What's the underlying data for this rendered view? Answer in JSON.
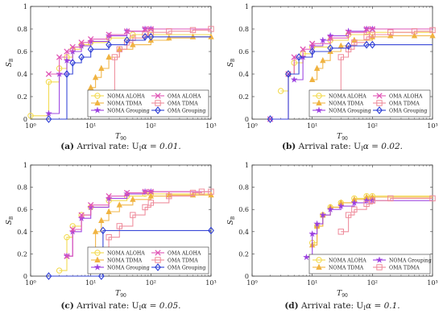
{
  "chart_data": [
    {
      "type": "line",
      "panel": "a",
      "caption_tag": "(a)",
      "caption_text": " Arrival rate: U",
      "caption_sub": "I",
      "caption_rest": "α = 0.01.",
      "xlabel": "T",
      "xlabel_sub": "90",
      "ylabel": "S",
      "ylabel_sub": "B",
      "x_scale": "log",
      "xlim": [
        1,
        1000
      ],
      "ylim": [
        0,
        1
      ],
      "x_ticks": [
        1,
        10,
        100,
        1000
      ],
      "x_tick_labels": [
        "10⁰",
        "10¹",
        "10²",
        "10³"
      ],
      "y_ticks": [
        0,
        0.2,
        0.4,
        0.6,
        0.8,
        1
      ],
      "y_tick_labels": [
        "0",
        "0.2",
        "0.4",
        "0.6",
        "0.8",
        "1"
      ],
      "legend_position": "bottom-right",
      "series": [
        {
          "name": "NOMA ALOHA",
          "color": "#f2d94a",
          "marker": "circle",
          "x": [
            1,
            2,
            3,
            4,
            5,
            7,
            10,
            20,
            50,
            100
          ],
          "y": [
            0.03,
            0.33,
            0.45,
            0.55,
            0.62,
            0.66,
            0.68,
            0.72,
            0.75,
            0.75
          ]
        },
        {
          "name": "NOMA TDMA",
          "color": "#f0b341",
          "marker": "triangle",
          "x": [
            10,
            12,
            15,
            20,
            30,
            50,
            100,
            200,
            500,
            1000
          ],
          "y": [
            0.28,
            0.37,
            0.45,
            0.55,
            0.62,
            0.66,
            0.7,
            0.72,
            0.73,
            0.73
          ]
        },
        {
          "name": "NOMA Grouping",
          "color": "#9a3ee0",
          "marker": "star",
          "x": [
            2,
            3,
            4,
            5,
            7,
            10,
            20,
            40,
            80,
            100
          ],
          "y": [
            0.05,
            0.4,
            0.52,
            0.6,
            0.65,
            0.69,
            0.74,
            0.78,
            0.8,
            0.8
          ]
        },
        {
          "name": "OMA ALOHA",
          "color": "#e055b5",
          "marker": "x",
          "x": [
            2,
            3,
            4,
            5,
            7,
            10,
            20,
            40,
            80,
            100
          ],
          "y": [
            0.4,
            0.55,
            0.6,
            0.64,
            0.68,
            0.71,
            0.75,
            0.78,
            0.8,
            0.8
          ]
        },
        {
          "name": "OMA TDMA",
          "color": "#ee8a9a",
          "marker": "square",
          "x": [
            20,
            25,
            30,
            40,
            50,
            80,
            100,
            200,
            500,
            1000
          ],
          "y": [
            0.18,
            0.55,
            0.62,
            0.68,
            0.72,
            0.75,
            0.77,
            0.78,
            0.79,
            0.8
          ]
        },
        {
          "name": "OMA Grouping",
          "color": "#2f3fd6",
          "marker": "diamond",
          "x": [
            2,
            4,
            5,
            7,
            10,
            20,
            40,
            80,
            100
          ],
          "y": [
            0.0,
            0.4,
            0.5,
            0.55,
            0.62,
            0.66,
            0.7,
            0.73,
            0.73
          ]
        }
      ]
    },
    {
      "type": "line",
      "panel": "b",
      "caption_tag": "(b)",
      "caption_text": " Arrival rate: U",
      "caption_sub": "I",
      "caption_rest": "α = 0.02.",
      "xlabel": "T",
      "xlabel_sub": "90",
      "ylabel": "S",
      "ylabel_sub": "B",
      "x_scale": "log",
      "xlim": [
        1,
        1000
      ],
      "ylim": [
        0,
        1
      ],
      "x_ticks": [
        1,
        10,
        100,
        1000
      ],
      "x_tick_labels": [
        "10⁰",
        "10¹",
        "10²",
        "10³"
      ],
      "y_ticks": [
        0,
        0.2,
        0.4,
        0.6,
        0.8,
        1
      ],
      "y_tick_labels": [
        "0",
        "0.2",
        "0.4",
        "0.6",
        "0.8",
        "1"
      ],
      "legend_position": "bottom-right",
      "series": [
        {
          "name": "NOMA ALOHA",
          "color": "#f2d94a",
          "marker": "circle",
          "x": [
            3,
            4,
            5,
            7,
            10,
            20,
            40,
            80,
            100
          ],
          "y": [
            0.25,
            0.4,
            0.5,
            0.58,
            0.64,
            0.7,
            0.75,
            0.77,
            0.77
          ]
        },
        {
          "name": "NOMA TDMA",
          "color": "#f0b341",
          "marker": "triangle",
          "x": [
            10,
            12,
            15,
            20,
            30,
            50,
            100,
            200,
            500,
            1000
          ],
          "y": [
            0.35,
            0.45,
            0.52,
            0.6,
            0.65,
            0.7,
            0.73,
            0.74,
            0.74,
            0.74
          ]
        },
        {
          "name": "NOMA Grouping",
          "color": "#9a3ee0",
          "marker": "star",
          "x": [
            5,
            7,
            10,
            15,
            20,
            40,
            80,
            100
          ],
          "y": [
            0.35,
            0.55,
            0.65,
            0.7,
            0.74,
            0.78,
            0.8,
            0.8
          ]
        },
        {
          "name": "OMA ALOHA",
          "color": "#e055b5",
          "marker": "x",
          "x": [
            2,
            4,
            5,
            7,
            10,
            20,
            40,
            80,
            100
          ],
          "y": [
            0.0,
            0.4,
            0.55,
            0.62,
            0.67,
            0.72,
            0.77,
            0.8,
            0.8
          ]
        },
        {
          "name": "OMA TDMA",
          "color": "#ee8a9a",
          "marker": "square",
          "x": [
            20,
            30,
            40,
            50,
            80,
            100,
            200,
            500,
            1000
          ],
          "y": [
            0.12,
            0.55,
            0.62,
            0.68,
            0.73,
            0.75,
            0.77,
            0.78,
            0.79
          ]
        },
        {
          "name": "OMA Grouping",
          "color": "#2f3fd6",
          "marker": "diamond",
          "x": [
            2,
            4,
            6,
            10,
            20,
            40,
            80,
            100
          ],
          "y": [
            0.0,
            0.4,
            0.55,
            0.6,
            0.63,
            0.65,
            0.66,
            0.66
          ]
        }
      ]
    },
    {
      "type": "line",
      "panel": "c",
      "caption_tag": "(c)",
      "caption_text": " Arrival rate: U",
      "caption_sub": "I",
      "caption_rest": "α = 0.05.",
      "xlabel": "T",
      "xlabel_sub": "90",
      "ylabel": "S",
      "ylabel_sub": "B",
      "x_scale": "log",
      "xlim": [
        1,
        1000
      ],
      "ylim": [
        0,
        1
      ],
      "x_ticks": [
        1,
        10,
        100,
        1000
      ],
      "x_tick_labels": [
        "10⁰",
        "10¹",
        "10²",
        "10³"
      ],
      "y_ticks": [
        0,
        0.2,
        0.4,
        0.6,
        0.8,
        1
      ],
      "y_tick_labels": [
        "0",
        "0.2",
        "0.4",
        "0.6",
        "0.8",
        "1"
      ],
      "legend_position": "bottom-right",
      "series": [
        {
          "name": "NOMA ALOHA",
          "color": "#f2d94a",
          "marker": "circle",
          "x": [
            3,
            4,
            5,
            7,
            10,
            20,
            40,
            80,
            100
          ],
          "y": [
            0.05,
            0.35,
            0.45,
            0.55,
            0.62,
            0.68,
            0.72,
            0.74,
            0.74
          ]
        },
        {
          "name": "NOMA TDMA",
          "color": "#f0b341",
          "marker": "triangle",
          "x": [
            10,
            12,
            15,
            20,
            30,
            50,
            100,
            200,
            500,
            1000
          ],
          "y": [
            0.22,
            0.4,
            0.5,
            0.58,
            0.64,
            0.69,
            0.72,
            0.73,
            0.73,
            0.73
          ]
        },
        {
          "name": "NOMA Grouping",
          "color": "#9a3ee0",
          "marker": "star",
          "x": [
            4,
            5,
            7,
            10,
            20,
            40,
            80,
            100
          ],
          "y": [
            0.18,
            0.4,
            0.52,
            0.62,
            0.7,
            0.74,
            0.76,
            0.76
          ]
        },
        {
          "name": "OMA ALOHA",
          "color": "#e055b5",
          "marker": "x",
          "x": [
            4,
            5,
            7,
            10,
            20,
            40,
            80,
            100
          ],
          "y": [
            0.18,
            0.42,
            0.55,
            0.64,
            0.72,
            0.75,
            0.76,
            0.76
          ]
        },
        {
          "name": "OMA TDMA",
          "color": "#ee8a9a",
          "marker": "square",
          "x": [
            15,
            20,
            30,
            50,
            80,
            100,
            200,
            500,
            700,
            1000
          ],
          "y": [
            0.15,
            0.35,
            0.45,
            0.55,
            0.62,
            0.66,
            0.72,
            0.75,
            0.76,
            0.76
          ]
        },
        {
          "name": "OMA Grouping",
          "color": "#2f3fd6",
          "marker": "diamond",
          "x": [
            2,
            15,
            16,
            1000
          ],
          "y": [
            0.0,
            0.0,
            0.41,
            0.41
          ]
        }
      ]
    },
    {
      "type": "line",
      "panel": "d",
      "caption_tag": "(d)",
      "caption_text": " Arrival rate: U",
      "caption_sub": "I",
      "caption_rest": "α = 0.1.",
      "xlabel": "T",
      "xlabel_sub": "90",
      "ylabel": "S",
      "ylabel_sub": "B",
      "x_scale": "log",
      "xlim": [
        1,
        1000
      ],
      "ylim": [
        0,
        1
      ],
      "x_ticks": [
        1,
        10,
        100,
        1000
      ],
      "x_tick_labels": [
        "10⁰",
        "10¹",
        "10²",
        "10³"
      ],
      "y_ticks": [
        0,
        0.2,
        0.4,
        0.6,
        0.8,
        1
      ],
      "y_tick_labels": [
        "0",
        "0.2",
        "0.4",
        "0.6",
        "0.8",
        "1"
      ],
      "legend_position": "bottom-right",
      "series": [
        {
          "name": "NOMA ALOHA",
          "color": "#f2d94a",
          "marker": "circle",
          "x": [
            10,
            12,
            15,
            20,
            30,
            50,
            80,
            100
          ],
          "y": [
            0.3,
            0.45,
            0.55,
            0.62,
            0.66,
            0.7,
            0.72,
            0.72
          ]
        },
        {
          "name": "NOMA TDMA",
          "color": "#f0b341",
          "marker": "triangle",
          "x": [
            10,
            12,
            15,
            20,
            30,
            50,
            80,
            100
          ],
          "y": [
            0.28,
            0.45,
            0.55,
            0.62,
            0.66,
            0.69,
            0.71,
            0.71
          ]
        },
        {
          "name": "NOMA Grouping",
          "color": "#9a3ee0",
          "marker": "star",
          "x": [
            8,
            10,
            12,
            15,
            20,
            30,
            50,
            80,
            100
          ],
          "y": [
            0.17,
            0.38,
            0.47,
            0.55,
            0.6,
            0.63,
            0.66,
            0.68,
            0.68
          ]
        },
        {
          "name": "OMA TDMA",
          "color": "#ee8a9a",
          "marker": "square",
          "x": [
            30,
            40,
            50,
            80,
            100,
            200,
            1000
          ],
          "y": [
            0.4,
            0.55,
            0.6,
            0.65,
            0.68,
            0.7,
            0.7
          ]
        }
      ]
    }
  ]
}
